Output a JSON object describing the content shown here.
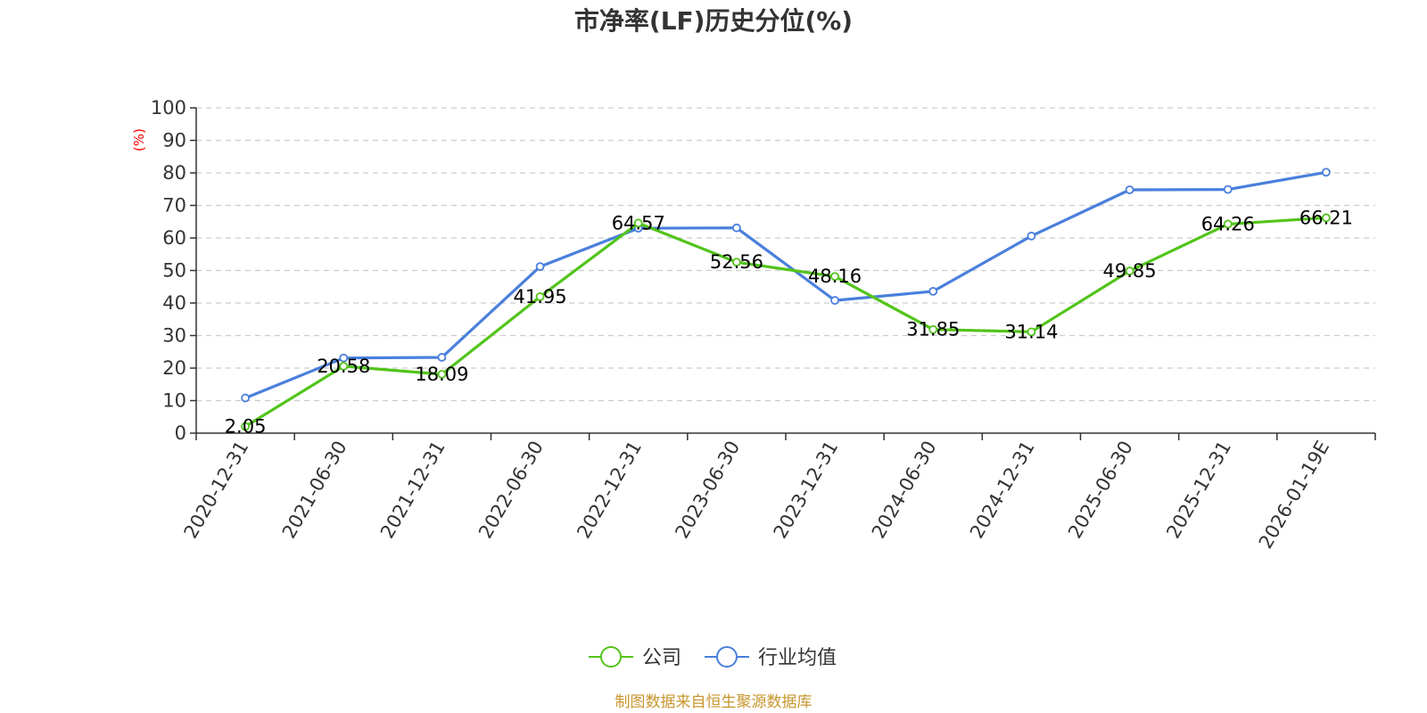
{
  "chart_data": {
    "type": "line",
    "title": "市净率(LF)历史分位(%)",
    "ylabel": "(%)",
    "ylim": [
      0,
      100
    ],
    "yticks": [
      0,
      10,
      20,
      30,
      40,
      50,
      60,
      70,
      80,
      90,
      100
    ],
    "grid": true,
    "legend_position": "bottom",
    "categories": [
      "2020-12-31",
      "2021-06-30",
      "2021-12-31",
      "2022-06-30",
      "2022-12-31",
      "2023-06-30",
      "2023-12-31",
      "2024-06-30",
      "2024-12-31",
      "2025-06-30",
      "2025-12-31",
      "2026-01-19E"
    ],
    "series": [
      {
        "name": "公司",
        "color": "#52c41a",
        "values": [
          2.05,
          20.58,
          18.09,
          41.95,
          64.57,
          52.56,
          48.16,
          31.85,
          31.14,
          49.85,
          64.26,
          66.21
        ],
        "labels": [
          "2.05",
          "20.58",
          "18.09",
          "41.95",
          "64.57",
          "52.56",
          "48.16",
          "31.85",
          "31.14",
          "49.85",
          "64.26",
          "66.21"
        ]
      },
      {
        "name": "行业均值",
        "color": "#4a7fdc",
        "values": [
          10.8,
          23.1,
          23.3,
          51.2,
          63.0,
          63.1,
          40.8,
          43.6,
          60.6,
          74.8,
          74.9,
          80.2
        ]
      }
    ],
    "source": "制图数据来自恒生聚源数据库"
  }
}
